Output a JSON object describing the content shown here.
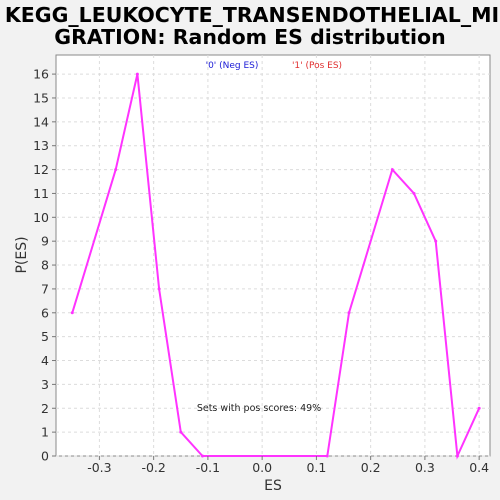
{
  "chart_data": {
    "type": "line",
    "title": [
      "KEGG_LEUKOCYTE_TRANSENDOTHELIAL_MI",
      "GRATION: Random ES distribution"
    ],
    "xlabel": "ES",
    "ylabel": "P(ES)",
    "xlim": [
      -0.38,
      0.42
    ],
    "ylim": [
      0,
      16.8
    ],
    "xticks": [
      -0.3,
      -0.2,
      -0.1,
      0.0,
      0.1,
      0.2,
      0.3,
      0.4
    ],
    "xtick_labels": [
      "-0.3",
      "-0.2",
      "-0.1",
      "0.0",
      "0.1",
      "0.2",
      "0.3",
      "0.4"
    ],
    "yticks": [
      0,
      1,
      2,
      3,
      4,
      5,
      6,
      7,
      8,
      9,
      10,
      11,
      12,
      13,
      14,
      15,
      16
    ],
    "ytick_labels": [
      "0",
      "1",
      "2",
      "3",
      "4",
      "5",
      "6",
      "7",
      "8",
      "9",
      "10",
      "11",
      "12",
      "13",
      "14",
      "15",
      "16"
    ],
    "grid": true,
    "legend": [
      {
        "label": "'0' (Neg ES)",
        "color": "#1a1ad6"
      },
      {
        "label": "'1' (Pos ES)",
        "color": "#e03030"
      }
    ],
    "annotation": "Sets with pos scores: 49%",
    "series": [
      {
        "color": "#ff33ff",
        "x": [
          -0.35,
          -0.27,
          -0.23,
          -0.19,
          -0.15,
          -0.11,
          0.12,
          0.16,
          0.24,
          0.28,
          0.32,
          0.36,
          0.4
        ],
        "y": [
          6,
          12,
          16,
          7,
          1,
          0,
          0,
          6,
          12,
          11,
          9,
          0,
          2
        ]
      }
    ]
  }
}
